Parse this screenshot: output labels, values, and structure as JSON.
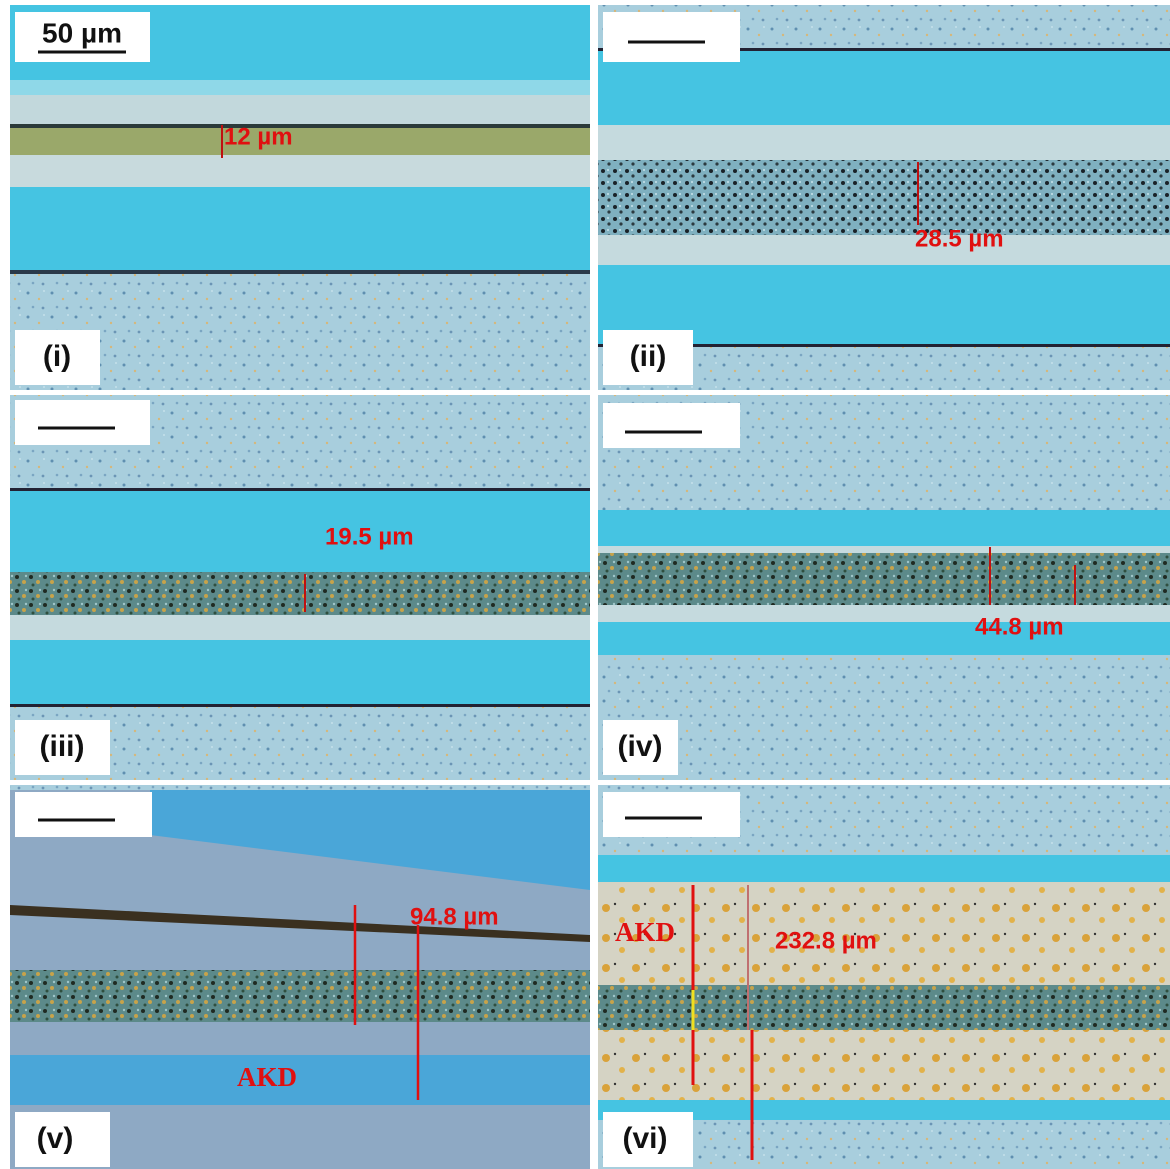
{
  "panels": [
    {
      "label": "(i)",
      "scale_bar": "50 µm",
      "measurement": "12 µm"
    },
    {
      "label": "(ii)",
      "measurement": "28.5 µm"
    },
    {
      "label": "(iii)",
      "measurement": "19.5 µm"
    },
    {
      "label": "(iv)",
      "measurement": "44.8 µm"
    },
    {
      "label": "(v)",
      "measurement": "94.8 µm",
      "annotation": "AKD"
    },
    {
      "label": "(vi)",
      "measurement": "232.8 µm",
      "annotation": "AKD"
    }
  ]
}
